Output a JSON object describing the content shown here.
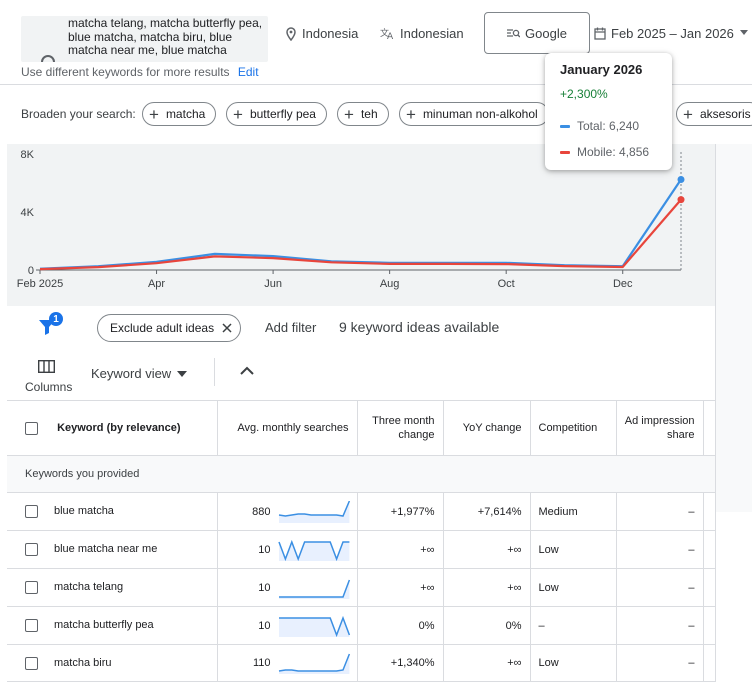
{
  "search": {
    "keywords": "matcha telang, matcha butterfly pea, blue matcha, matcha biru, blue matcha near me, blue matcha",
    "hint": "Use different keywords for more results",
    "edit_label": "Edit"
  },
  "filters": {
    "location": "Indonesia",
    "language": "Indonesian",
    "engine": "Google",
    "date_range": "Feb 2025 – Jan 2026"
  },
  "broaden": {
    "label": "Broaden your search:",
    "chips": [
      "matcha",
      "butterfly pea",
      "teh",
      "minuman non-alkohol",
      "aksesoris"
    ]
  },
  "tooltip": {
    "title": "January 2026",
    "change": "+2,300%",
    "total": "Total: 6,240",
    "mobile": "Mobile: 4,856"
  },
  "colors": {
    "total": "#3b8fe3",
    "mobile": "#e8453c",
    "accent": "#1a73e8"
  },
  "chart_data": {
    "type": "line",
    "x": [
      "Feb 2025",
      "Mar 2025",
      "Apr 2025",
      "May 2025",
      "Jun 2025",
      "Jul 2025",
      "Aug 2025",
      "Sep 2025",
      "Oct 2025",
      "Nov 2025",
      "Dec 2025",
      "Jan 2026"
    ],
    "x_tick_labels": [
      "Feb 2025",
      "Apr",
      "Jun",
      "Aug",
      "Oct",
      "Dec"
    ],
    "y_tick_labels": [
      "0",
      "4K",
      "8K"
    ],
    "ylim": [
      0,
      8000
    ],
    "series": [
      {
        "name": "Total",
        "values": [
          90,
          260,
          560,
          1110,
          960,
          600,
          500,
          500,
          500,
          330,
          260,
          6240
        ]
      },
      {
        "name": "Mobile",
        "values": [
          60,
          200,
          470,
          940,
          820,
          530,
          420,
          420,
          410,
          270,
          210,
          4856
        ]
      }
    ],
    "grid": false
  },
  "toolbar": {
    "ideas_count": "9 keyword ideas available",
    "exclude_label": "Exclude adult ideas",
    "add_filter": "Add filter",
    "filter_badge": "1",
    "columns_label": "Columns",
    "view_label": "Keyword view"
  },
  "table": {
    "headers": {
      "keyword": "Keyword (by relevance)",
      "avg": "Avg. monthly searches",
      "three_month": "Three month change",
      "yoy": "YoY change",
      "competition": "Competition",
      "ad_share": "Ad impression share"
    },
    "group_label": "Keywords you provided",
    "rows": [
      {
        "keyword": "blue matcha",
        "avg": "880",
        "three_month": "+1,977%",
        "yoy": "+7,614%",
        "competition": "Medium",
        "ad_share": "–",
        "trend": [
          6,
          5,
          6,
          7,
          7,
          6,
          6,
          6,
          6,
          6,
          5,
          20
        ]
      },
      {
        "keyword": "blue matcha near me",
        "avg": "10",
        "three_month": "+∞",
        "yoy": "+∞",
        "competition": "Low",
        "ad_share": "–",
        "trend": [
          17,
          0,
          17,
          0,
          17,
          17,
          17,
          17,
          17,
          0,
          17,
          17
        ]
      },
      {
        "keyword": "matcha telang",
        "avg": "10",
        "three_month": "+∞",
        "yoy": "+∞",
        "competition": "Low",
        "ad_share": "–",
        "trend": [
          0,
          0,
          0,
          0,
          0,
          0,
          0,
          0,
          0,
          0,
          0,
          17
        ]
      },
      {
        "keyword": "matcha butterfly pea",
        "avg": "10",
        "three_month": "0%",
        "yoy": "0%",
        "competition": "–",
        "ad_share": "–",
        "trend": [
          17,
          17,
          17,
          17,
          17,
          17,
          17,
          17,
          17,
          0,
          17,
          0
        ]
      },
      {
        "keyword": "matcha biru",
        "avg": "110",
        "three_month": "+1,340%",
        "yoy": "+∞",
        "competition": "Low",
        "ad_share": "–",
        "trend": [
          1,
          2,
          2,
          1,
          1,
          1,
          1,
          1,
          1,
          1,
          2,
          18
        ]
      }
    ]
  }
}
